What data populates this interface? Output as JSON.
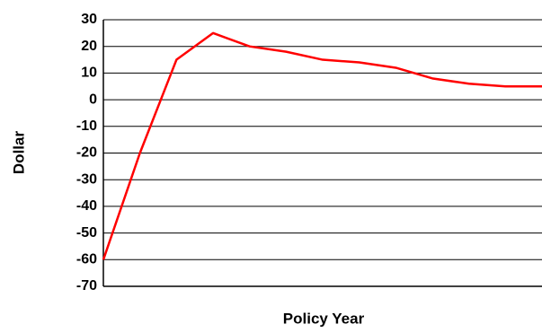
{
  "chart_data": {
    "type": "line",
    "x_label": "Policy Year",
    "y_label": "Dollar",
    "categories": [
      null,
      null,
      null,
      null,
      null,
      null,
      null,
      null,
      null,
      null,
      null,
      null,
      null
    ],
    "series": [
      {
        "name": null,
        "color": "#ff0000",
        "values": [
          -60,
          -20,
          15,
          25,
          20,
          18,
          15,
          14,
          12,
          8,
          6,
          5,
          5
        ]
      }
    ],
    "ylim": [
      -70,
      30
    ],
    "yticks": [
      -70,
      -60,
      -50,
      -40,
      -30,
      -20,
      -10,
      0,
      10,
      20,
      30
    ],
    "grid": true
  }
}
